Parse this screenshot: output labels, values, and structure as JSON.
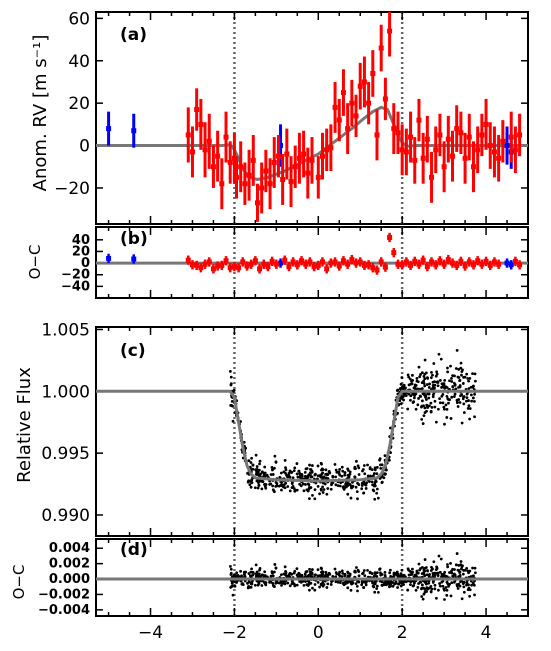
{
  "chart_data": [
    {
      "panel": "a",
      "tag": "(a)",
      "type": "scatter",
      "ylabel": "Anom. RV [m s⁻¹]",
      "xlim": [
        -5.3,
        5.0
      ],
      "ylim": [
        -37,
        63
      ],
      "yticks": [
        -20,
        0,
        20,
        40,
        60
      ],
      "yticklabels": [
        "−20",
        "0",
        "20",
        "40",
        "60"
      ],
      "vlines": [
        -2.0,
        2.0
      ],
      "series": [
        {
          "color": "#0000ff",
          "points": [
            [
              -5.0,
              8,
              8
            ],
            [
              -4.4,
              7,
              8
            ],
            [
              -0.9,
              0,
              10
            ],
            [
              4.5,
              0,
              9
            ],
            [
              4.6,
              -3,
              8
            ]
          ]
        },
        {
          "color": "#ff0000",
          "points": [
            [
              -3.1,
              5,
              13
            ],
            [
              -3.0,
              -3,
              12
            ],
            [
              -2.9,
              17,
              10
            ],
            [
              -2.8,
              10,
              12
            ],
            [
              -2.7,
              -2,
              13
            ],
            [
              -2.6,
              2,
              13
            ],
            [
              -2.5,
              -10,
              10
            ],
            [
              -2.4,
              -5,
              12
            ],
            [
              -2.3,
              -18,
              12
            ],
            [
              -2.2,
              4,
              12
            ],
            [
              -2.1,
              -8,
              10
            ],
            [
              -2.0,
              -6,
              12
            ],
            [
              -1.95,
              -15,
              10
            ],
            [
              -1.85,
              -10,
              12
            ],
            [
              -1.75,
              -18,
              10
            ],
            [
              -1.65,
              -14,
              12
            ],
            [
              -1.55,
              -7,
              12
            ],
            [
              -1.45,
              -27,
              9
            ],
            [
              -1.35,
              -20,
              12
            ],
            [
              -1.25,
              -12,
              10
            ],
            [
              -1.15,
              -18,
              12
            ],
            [
              -1.05,
              -8,
              12
            ],
            [
              -0.95,
              -5,
              10
            ],
            [
              -0.85,
              -16,
              12
            ],
            [
              -0.75,
              -4,
              12
            ],
            [
              -0.65,
              -17,
              12
            ],
            [
              -0.55,
              -10,
              10
            ],
            [
              -0.45,
              -6,
              12
            ],
            [
              -0.35,
              -4,
              11
            ],
            [
              -0.25,
              -13,
              12
            ],
            [
              -0.15,
              -7,
              11
            ],
            [
              0.0,
              -15,
              10
            ],
            [
              0.1,
              -5,
              11
            ],
            [
              0.2,
              -2,
              10
            ],
            [
              0.3,
              -1,
              11
            ],
            [
              0.4,
              18,
              12
            ],
            [
              0.5,
              12,
              10
            ],
            [
              0.6,
              25,
              11
            ],
            [
              0.7,
              8,
              12
            ],
            [
              0.8,
              20,
              11
            ],
            [
              0.9,
              14,
              10
            ],
            [
              1.0,
              28,
              11
            ],
            [
              1.1,
              30,
              12
            ],
            [
              1.2,
              20,
              10
            ],
            [
              1.3,
              34,
              11
            ],
            [
              1.4,
              5,
              12
            ],
            [
              1.5,
              46,
              11
            ],
            [
              1.6,
              22,
              10
            ],
            [
              1.7,
              54,
              12
            ],
            [
              1.8,
              8,
              12
            ],
            [
              1.9,
              6,
              10
            ],
            [
              2.0,
              -2,
              12
            ],
            [
              2.1,
              -3,
              11
            ],
            [
              2.2,
              4,
              12
            ],
            [
              2.3,
              -7,
              11
            ],
            [
              2.4,
              12,
              10
            ],
            [
              2.5,
              -6,
              12
            ],
            [
              2.6,
              3,
              11
            ],
            [
              2.7,
              -15,
              12
            ],
            [
              2.8,
              -2,
              11
            ],
            [
              2.9,
              5,
              10
            ],
            [
              3.0,
              -10,
              12
            ],
            [
              3.1,
              3,
              11
            ],
            [
              3.2,
              -5,
              12
            ],
            [
              3.3,
              8,
              11
            ],
            [
              3.4,
              6,
              10
            ],
            [
              3.5,
              -6,
              12
            ],
            [
              3.6,
              4,
              11
            ],
            [
              3.7,
              -10,
              12
            ],
            [
              3.8,
              -2,
              11
            ],
            [
              3.9,
              5,
              10
            ],
            [
              4.0,
              10,
              12
            ],
            [
              4.1,
              0,
              11
            ],
            [
              4.2,
              -3,
              12
            ],
            [
              4.3,
              -6,
              11
            ],
            [
              4.4,
              2,
              10
            ],
            [
              4.6,
              4,
              12
            ],
            [
              4.7,
              -2,
              11
            ],
            [
              4.8,
              5,
              10
            ]
          ]
        }
      ],
      "model_curve": [
        [
          -5.3,
          0
        ],
        [
          -2.3,
          0
        ],
        [
          -2.15,
          0.3
        ],
        [
          -2.05,
          -0.3
        ],
        [
          -1.95,
          -4
        ],
        [
          -1.8,
          -11
        ],
        [
          -1.65,
          -15
        ],
        [
          -1.45,
          -16
        ],
        [
          -1.2,
          -15
        ],
        [
          -0.8,
          -12
        ],
        [
          -0.4,
          -8
        ],
        [
          0,
          -4
        ],
        [
          0.4,
          2
        ],
        [
          0.8,
          8
        ],
        [
          1.1,
          13
        ],
        [
          1.3,
          16
        ],
        [
          1.5,
          18
        ],
        [
          1.65,
          17
        ],
        [
          1.8,
          10
        ],
        [
          1.95,
          3
        ],
        [
          2.05,
          0.3
        ],
        [
          2.15,
          -0.3
        ],
        [
          2.3,
          0
        ],
        [
          5.0,
          0
        ]
      ]
    },
    {
      "panel": "b",
      "tag": "(b)",
      "type": "scatter",
      "ylabel": "O−C",
      "xlim": [
        -5.3,
        5.0
      ],
      "ylim": [
        -60,
        62
      ],
      "yticks": [
        -40,
        -20,
        0,
        20,
        40
      ],
      "yticklabels": [
        "−40",
        "−20",
        "0",
        "20",
        "40"
      ],
      "vlines": [
        -2.0,
        2.0
      ],
      "hline": 0,
      "residual_points": [
        [
          -5.0,
          8,
          "b"
        ],
        [
          -4.4,
          7,
          "b"
        ],
        [
          -0.9,
          0,
          "b"
        ],
        [
          4.5,
          0,
          "b"
        ],
        [
          4.6,
          -3,
          "b"
        ],
        [
          -3.1,
          5,
          "r"
        ],
        [
          -3.0,
          -3,
          "r"
        ],
        [
          -2.9,
          -4,
          "r"
        ],
        [
          -2.8,
          -8,
          "r"
        ],
        [
          -2.7,
          -2,
          "r"
        ],
        [
          -2.6,
          2,
          "r"
        ],
        [
          -2.5,
          -10,
          "r"
        ],
        [
          -2.4,
          -5,
          "r"
        ],
        [
          -2.3,
          -4,
          "r"
        ],
        [
          -2.2,
          4,
          "r"
        ],
        [
          -2.1,
          -8,
          "r"
        ],
        [
          -2.0,
          -6,
          "r"
        ],
        [
          -1.9,
          -8,
          "r"
        ],
        [
          -1.8,
          2,
          "r"
        ],
        [
          -1.7,
          -5,
          "r"
        ],
        [
          -1.6,
          -2,
          "r"
        ],
        [
          -1.5,
          4,
          "r"
        ],
        [
          -1.4,
          -10,
          "r"
        ],
        [
          -1.3,
          -2,
          "r"
        ],
        [
          -1.2,
          -6,
          "r"
        ],
        [
          -1.1,
          3,
          "r"
        ],
        [
          -1.0,
          -2,
          "r"
        ],
        [
          -0.8,
          5,
          "r"
        ],
        [
          -0.7,
          -6,
          "r"
        ],
        [
          -0.6,
          2,
          "r"
        ],
        [
          -0.5,
          -3,
          "r"
        ],
        [
          -0.4,
          4,
          "r"
        ],
        [
          -0.3,
          -2,
          "r"
        ],
        [
          -0.2,
          2,
          "r"
        ],
        [
          -0.1,
          -6,
          "r"
        ],
        [
          0.0,
          -4,
          "r"
        ],
        [
          0.1,
          2,
          "r"
        ],
        [
          0.2,
          -10,
          "r"
        ],
        [
          0.3,
          0,
          "r"
        ],
        [
          0.4,
          2,
          "r"
        ],
        [
          0.5,
          -5,
          "r"
        ],
        [
          0.6,
          4,
          "r"
        ],
        [
          0.7,
          -2,
          "r"
        ],
        [
          0.8,
          6,
          "r"
        ],
        [
          0.9,
          0,
          "r"
        ],
        [
          1.0,
          2,
          "r"
        ],
        [
          1.1,
          -4,
          "r"
        ],
        [
          1.2,
          -3,
          "r"
        ],
        [
          1.3,
          -8,
          "r"
        ],
        [
          1.4,
          -12,
          "r"
        ],
        [
          1.5,
          2,
          "r"
        ],
        [
          1.6,
          -7,
          "r"
        ],
        [
          1.7,
          44,
          "r"
        ],
        [
          1.8,
          18,
          "r"
        ],
        [
          1.9,
          -2,
          "r"
        ],
        [
          2.0,
          -3,
          "r"
        ],
        [
          2.1,
          2,
          "r"
        ],
        [
          2.2,
          -4,
          "r"
        ],
        [
          2.3,
          3,
          "r"
        ],
        [
          2.4,
          -2,
          "r"
        ],
        [
          2.5,
          5,
          "r"
        ],
        [
          2.6,
          -6,
          "r"
        ],
        [
          2.7,
          2,
          "r"
        ],
        [
          2.8,
          -3,
          "r"
        ],
        [
          2.9,
          4,
          "r"
        ],
        [
          3.0,
          -2,
          "r"
        ],
        [
          3.1,
          6,
          "r"
        ],
        [
          3.2,
          0,
          "r"
        ],
        [
          3.3,
          -4,
          "r"
        ],
        [
          3.4,
          3,
          "r"
        ],
        [
          3.5,
          -5,
          "r"
        ],
        [
          3.6,
          2,
          "r"
        ],
        [
          3.7,
          -3,
          "r"
        ],
        [
          3.8,
          4,
          "r"
        ],
        [
          3.9,
          -2,
          "r"
        ],
        [
          4.0,
          3,
          "r"
        ],
        [
          4.1,
          -4,
          "r"
        ],
        [
          4.2,
          2,
          "r"
        ],
        [
          4.3,
          -2,
          "r"
        ],
        [
          4.7,
          3,
          "r"
        ],
        [
          4.8,
          -3,
          "r"
        ]
      ]
    },
    {
      "panel": "c",
      "tag": "(c)",
      "type": "scatter",
      "ylabel": "Relative Flux",
      "xlim": [
        -5.3,
        5.0
      ],
      "ylim": [
        0.9883,
        1.0052
      ],
      "yticks": [
        0.99,
        0.995,
        1.0,
        1.005
      ],
      "yticklabels": [
        "0.990",
        "0.995",
        "1.000",
        "1.005"
      ],
      "vlines": [
        -2.0,
        2.0
      ],
      "scatter_x_range": [
        -2.1,
        3.75
      ],
      "scatter_count": 800,
      "model_curve": [
        [
          -5.3,
          1.0
        ],
        [
          -2.1,
          1.0
        ],
        [
          -2.0,
          0.9995
        ],
        [
          -1.9,
          0.9975
        ],
        [
          -1.8,
          0.9955
        ],
        [
          -1.7,
          0.994
        ],
        [
          -1.6,
          0.9933
        ],
        [
          -1.5,
          0.993
        ],
        [
          -1.0,
          0.99285
        ],
        [
          0.0,
          0.99275
        ],
        [
          1.0,
          0.99285
        ],
        [
          1.4,
          0.993
        ],
        [
          1.5,
          0.9933
        ],
        [
          1.6,
          0.994
        ],
        [
          1.7,
          0.9955
        ],
        [
          1.8,
          0.9975
        ],
        [
          1.9,
          0.9995
        ],
        [
          2.0,
          1.0
        ],
        [
          5.0,
          1.0
        ]
      ]
    },
    {
      "panel": "d",
      "tag": "(d)",
      "type": "scatter",
      "ylabel": "O−C",
      "xlim": [
        -5.3,
        5.0
      ],
      "ylim": [
        -0.0048,
        0.0052
      ],
      "yticks": [
        -0.004,
        -0.002,
        0.0,
        0.002,
        0.004
      ],
      "yticklabels": [
        "−0.004",
        "−0.002",
        "0.000",
        "0.002",
        "0.004"
      ],
      "vlines": [
        -2.0,
        2.0
      ],
      "hline": 0,
      "scatter_x_range": [
        -2.1,
        3.75
      ],
      "scatter_count": 800,
      "xticks": [
        -4,
        -2,
        0,
        2,
        4
      ],
      "xticklabels": [
        "−4",
        "−2",
        "0",
        "2",
        "4"
      ]
    }
  ]
}
